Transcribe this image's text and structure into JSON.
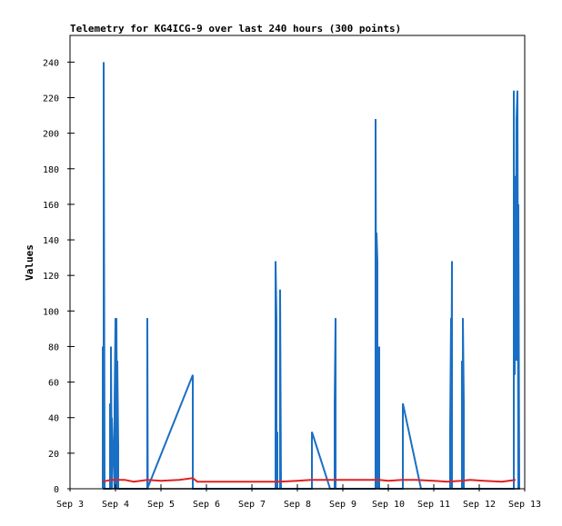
{
  "chart_data": {
    "type": "line",
    "title": "Telemetry for KG4ICG-9 over last 240 hours (300 points)",
    "xlabel": "",
    "ylabel": "Values",
    "x_ticks": [
      "Sep 3",
      "Sep 4",
      "Sep 5",
      "Sep 6",
      "Sep 7",
      "Sep 8",
      "Sep 9",
      "Sep 10",
      "Sep 11",
      "Sep 12",
      "Sep 13"
    ],
    "y_ticks": [
      "0",
      "20",
      "40",
      "60",
      "80",
      "100",
      "120",
      "140",
      "160",
      "180",
      "200",
      "220",
      "240"
    ],
    "xlim": [
      0,
      10
    ],
    "ylim": [
      0,
      255
    ],
    "grid": false,
    "legend": "none",
    "series": [
      {
        "color": "#1a6fc4",
        "points": [
          [
            0.72,
            0
          ],
          [
            0.72,
            80
          ],
          [
            0.74,
            0
          ],
          [
            0.74,
            240
          ],
          [
            0.76,
            0
          ],
          [
            0.88,
            0
          ],
          [
            0.88,
            48
          ],
          [
            0.9,
            0
          ],
          [
            0.9,
            80
          ],
          [
            0.92,
            0
          ],
          [
            0.92,
            40
          ],
          [
            0.98,
            0
          ],
          [
            0.98,
            48
          ],
          [
            1.0,
            96
          ],
          [
            1.02,
            0
          ],
          [
            1.02,
            96
          ],
          [
            1.04,
            0
          ],
          [
            1.04,
            72
          ],
          [
            1.06,
            24
          ],
          [
            1.06,
            0
          ],
          [
            1.7,
            0
          ],
          [
            1.7,
            96
          ],
          [
            1.71,
            0
          ],
          [
            1.7,
            0
          ],
          [
            2.7,
            64
          ],
          [
            2.7,
            0
          ],
          [
            4.52,
            0
          ],
          [
            4.52,
            128
          ],
          [
            4.54,
            96
          ],
          [
            4.54,
            0
          ],
          [
            4.56,
            32
          ],
          [
            4.56,
            0
          ],
          [
            4.62,
            0
          ],
          [
            4.62,
            112
          ],
          [
            4.64,
            0
          ],
          [
            5.32,
            0
          ],
          [
            5.32,
            32
          ],
          [
            5.72,
            0
          ],
          [
            5.82,
            0
          ],
          [
            5.82,
            48
          ],
          [
            5.84,
            96
          ],
          [
            5.84,
            0
          ],
          [
            6.72,
            0
          ],
          [
            6.72,
            208
          ],
          [
            6.74,
            0
          ],
          [
            6.74,
            144
          ],
          [
            6.76,
            128
          ],
          [
            6.76,
            0
          ],
          [
            6.78,
            40
          ],
          [
            6.8,
            80
          ],
          [
            6.8,
            0
          ],
          [
            7.32,
            0
          ],
          [
            7.32,
            48
          ],
          [
            7.72,
            0
          ],
          [
            8.36,
            0
          ],
          [
            8.36,
            32
          ],
          [
            8.38,
            96
          ],
          [
            8.38,
            0
          ],
          [
            8.4,
            128
          ],
          [
            8.4,
            0
          ],
          [
            8.62,
            0
          ],
          [
            8.62,
            72
          ],
          [
            8.64,
            24
          ],
          [
            8.64,
            96
          ],
          [
            8.66,
            48
          ],
          [
            8.66,
            0
          ],
          [
            9.76,
            0
          ],
          [
            9.76,
            224
          ],
          [
            9.78,
            64
          ],
          [
            9.8,
            176
          ],
          [
            9.82,
            72
          ],
          [
            9.82,
            208
          ],
          [
            9.84,
            224
          ],
          [
            9.86,
            0
          ],
          [
            9.86,
            160
          ],
          [
            9.88,
            0
          ]
        ]
      },
      {
        "color": "#e02020",
        "points": [
          [
            0.72,
            4
          ],
          [
            0.9,
            5
          ],
          [
            1.2,
            5
          ],
          [
            1.4,
            4
          ],
          [
            1.7,
            5
          ],
          [
            2.0,
            4.5
          ],
          [
            2.4,
            5
          ],
          [
            2.7,
            6
          ],
          [
            2.8,
            4
          ],
          [
            3.4,
            4
          ],
          [
            4.0,
            4
          ],
          [
            4.6,
            4
          ],
          [
            5.0,
            4.5
          ],
          [
            5.3,
            5
          ],
          [
            5.8,
            5
          ],
          [
            6.3,
            5
          ],
          [
            6.8,
            5
          ],
          [
            7.0,
            4.5
          ],
          [
            7.3,
            5
          ],
          [
            7.6,
            5
          ],
          [
            8.0,
            4.5
          ],
          [
            8.3,
            4
          ],
          [
            8.6,
            4.5
          ],
          [
            8.8,
            5
          ],
          [
            9.1,
            4.5
          ],
          [
            9.5,
            4
          ],
          [
            9.8,
            5
          ]
        ]
      },
      {
        "color": "#000000",
        "points": [
          [
            0.72,
            0
          ],
          [
            9.9,
            0
          ]
        ]
      }
    ]
  }
}
